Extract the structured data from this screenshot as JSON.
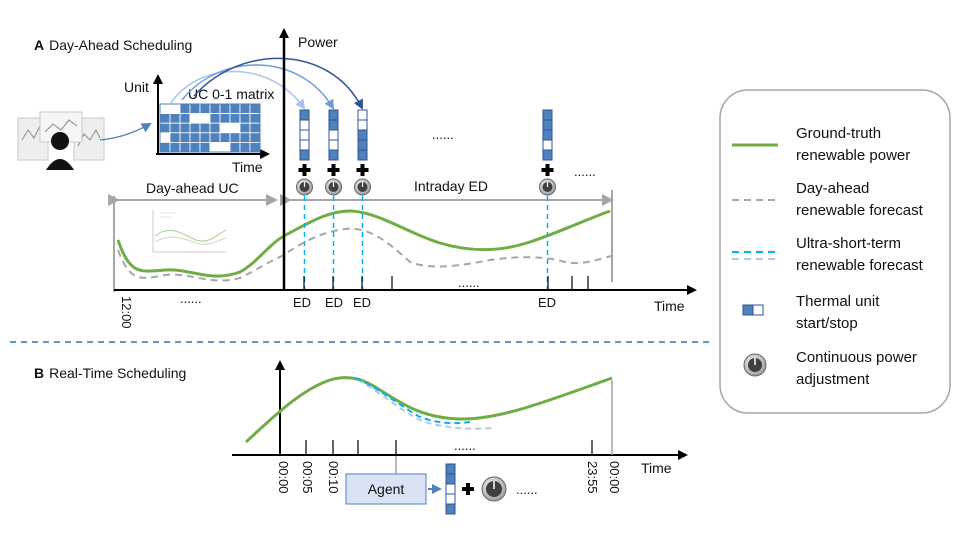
{
  "section_a": {
    "letter": "A",
    "title": "Day-Ahead Scheduling",
    "power_axis": "Power",
    "time_axis": "Time",
    "matrix_unit_axis": "Unit",
    "matrix_time_axis": "Time",
    "matrix_label": "UC 0-1 matrix",
    "day_ahead_uc": "Day-ahead UC",
    "intraday_ed": "Intraday ED",
    "start_tick": "12:00",
    "ellipsis": "......",
    "ed_labels": [
      "ED",
      "ED",
      "ED",
      "ED"
    ]
  },
  "section_b": {
    "letter": "B",
    "title": "Real-Time Scheduling",
    "time_axis": "Time",
    "tick_labels": [
      "00:00",
      "00:05",
      "00:10",
      "23:55",
      "00:00"
    ],
    "agent_label": "Agent",
    "ellipsis": "......"
  },
  "legend": {
    "items": [
      {
        "line1": "Ground-truth",
        "line2": "renewable power",
        "color": "#70ad47"
      },
      {
        "line1": "Day-ahead",
        "line2": "renewable forecast",
        "color": "#a6a6a6"
      },
      {
        "line1": "Ultra-short-term",
        "line2": "renewable forecast",
        "color": "#00b0f0"
      },
      {
        "line1": "Thermal unit",
        "line2": "start/stop",
        "color": "#4f81bd"
      },
      {
        "line1": "Continuous power",
        "line2": "adjustment",
        "color": "#404040"
      }
    ]
  },
  "colors": {
    "ground_truth": "#70ad47",
    "day_ahead": "#a6a6a6",
    "ultra_short": "#00b0f0",
    "unit_on": "#4f81bd",
    "divider": "#2e75b6",
    "agent_fill": "#dae3f3"
  }
}
